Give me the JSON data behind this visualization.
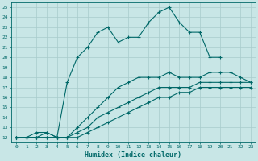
{
  "xlabel": "Humidex (Indice chaleur)",
  "bg_color": "#c8e6e6",
  "grid_color": "#a8cccc",
  "line_color": "#006868",
  "xlim": [
    -0.5,
    23.5
  ],
  "ylim": [
    11.5,
    25.5
  ],
  "xticks": [
    0,
    1,
    2,
    3,
    4,
    5,
    6,
    7,
    8,
    9,
    10,
    11,
    12,
    13,
    14,
    15,
    16,
    17,
    18,
    19,
    20,
    21,
    22,
    23
  ],
  "yticks": [
    12,
    13,
    14,
    15,
    16,
    17,
    18,
    19,
    20,
    21,
    22,
    23,
    24,
    25
  ],
  "lines": [
    {
      "x": [
        0,
        1,
        2,
        3,
        4,
        5,
        6,
        7,
        8,
        9,
        10,
        11,
        12,
        13,
        14,
        15,
        16,
        17,
        18,
        19,
        20
      ],
      "y": [
        12,
        12,
        12.5,
        12.5,
        12,
        17.5,
        20,
        21,
        22.5,
        23,
        21.5,
        22,
        22,
        23.5,
        24.5,
        25,
        23.5,
        22.5,
        22.5,
        20,
        20
      ]
    },
    {
      "x": [
        0,
        1,
        2,
        3,
        4,
        5,
        6,
        7,
        8,
        9,
        10,
        11,
        12,
        13,
        14,
        15,
        16,
        17,
        18,
        19,
        20,
        21,
        22,
        23
      ],
      "y": [
        12,
        12,
        12,
        12.5,
        12,
        12,
        13,
        14,
        15,
        16,
        17,
        17.5,
        18,
        18,
        18,
        18.5,
        18,
        18,
        18,
        18.5,
        18.5,
        18.5,
        18,
        17.5
      ]
    },
    {
      "x": [
        0,
        1,
        2,
        3,
        4,
        5,
        6,
        7,
        8,
        9,
        10,
        11,
        12,
        13,
        14,
        15,
        16,
        17,
        18,
        19,
        20,
        21,
        22,
        23
      ],
      "y": [
        12,
        12,
        12,
        12,
        12,
        12,
        12.5,
        13,
        14,
        14.5,
        15,
        15.5,
        16,
        16.5,
        17,
        17,
        17,
        17,
        17.5,
        17.5,
        17.5,
        17.5,
        17.5,
        17.5
      ]
    },
    {
      "x": [
        0,
        1,
        2,
        3,
        4,
        5,
        6,
        7,
        8,
        9,
        10,
        11,
        12,
        13,
        14,
        15,
        16,
        17,
        18,
        19,
        20,
        21,
        22,
        23
      ],
      "y": [
        12,
        12,
        12,
        12,
        12,
        12,
        12,
        12.5,
        13,
        13.5,
        14,
        14.5,
        15,
        15.5,
        16,
        16,
        16.5,
        16.5,
        17,
        17,
        17,
        17,
        17,
        17
      ]
    }
  ]
}
